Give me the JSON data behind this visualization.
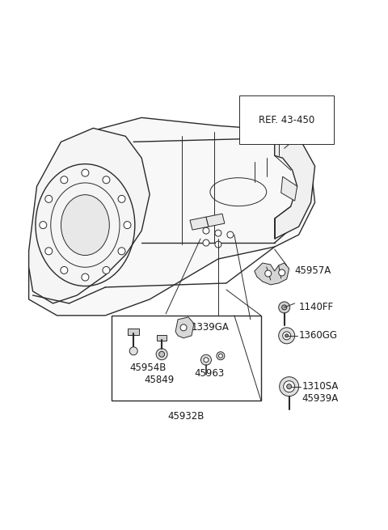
{
  "bg_color": "#ffffff",
  "line_color": "#2a2a2a",
  "fill_light": "#f0f0f0",
  "fill_mid": "#d8d8d8",
  "figsize": [
    4.8,
    6.55
  ],
  "dpi": 100,
  "labels": {
    "REF_43_450": "REF. 43-450",
    "45957A": "45957A",
    "1140FF": "1140FF",
    "1360GG": "1360GG",
    "1310SA": "1310SA",
    "45939A": "45939A",
    "1339GA": "1339GA",
    "45954B": "45954B",
    "45849": "45849",
    "45963": "45963",
    "45932B": "45932B"
  }
}
